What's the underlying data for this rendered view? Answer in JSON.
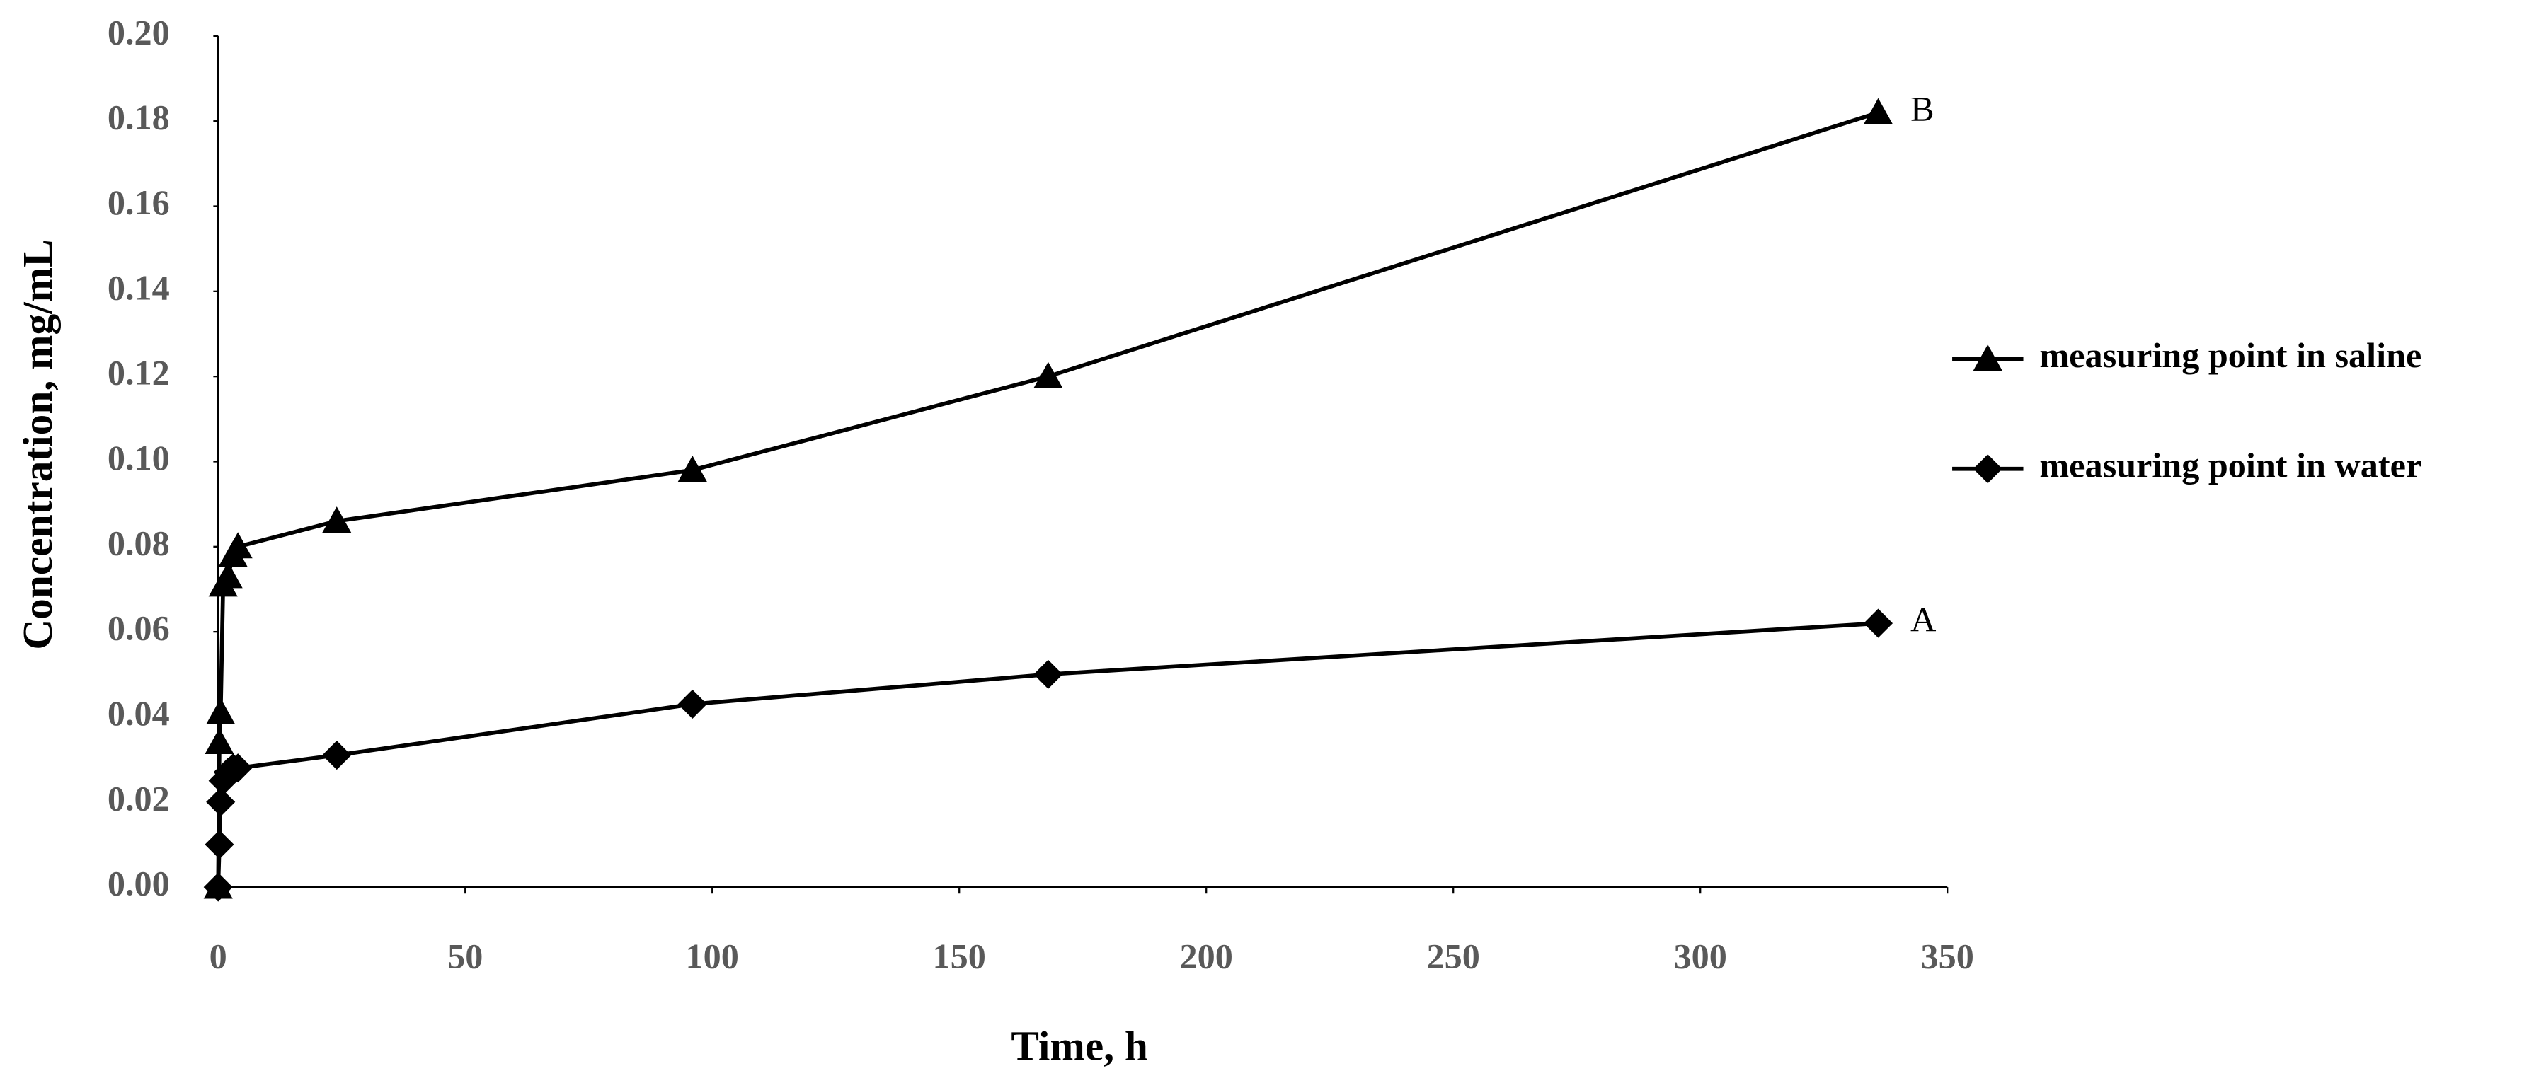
{
  "chart_data": {
    "type": "line",
    "x_label": "Time, h",
    "y_label": "Concentration, mg/mL",
    "x": [
      0,
      0.25,
      0.5,
      1,
      2,
      3,
      4,
      24,
      96,
      168,
      336
    ],
    "series": [
      {
        "name": "measuring point in saline",
        "color": "#000000",
        "marker": "triangle",
        "label": "B",
        "values": [
          0,
          0.034,
          0.041,
          0.071,
          0.073,
          0.078,
          0.08,
          0.086,
          0.098,
          0.12,
          0.182
        ]
      },
      {
        "name": "measuring point in water",
        "color": "#000000",
        "marker": "diamond",
        "label": "A",
        "values": [
          0,
          0.01,
          0.02,
          0.025,
          0.027,
          0.028,
          0.028,
          0.031,
          0.043,
          0.05,
          0.062
        ]
      }
    ],
    "xlim": [
      0,
      350
    ],
    "xticks": [
      0,
      50,
      100,
      150,
      200,
      250,
      300,
      350
    ],
    "ylim": [
      0,
      0.2
    ],
    "yticks": [
      {
        "value": 0,
        "label": "0.00"
      },
      {
        "value": 0.02,
        "label": "0.02"
      },
      {
        "value": 0.04,
        "label": "0.04"
      },
      {
        "value": 0.06,
        "label": "0.06"
      },
      {
        "value": 0.08,
        "label": "0.08"
      },
      {
        "value": 0.1,
        "label": "0.10"
      },
      {
        "value": 0.12,
        "label": "0.12"
      },
      {
        "value": 0.14,
        "label": "0.14"
      },
      {
        "value": 0.16,
        "label": "0.16"
      },
      {
        "value": 0.18,
        "label": "0.18"
      },
      {
        "value": 0.2,
        "label": "0.20"
      }
    ],
    "grid": false,
    "legend": "right"
  }
}
